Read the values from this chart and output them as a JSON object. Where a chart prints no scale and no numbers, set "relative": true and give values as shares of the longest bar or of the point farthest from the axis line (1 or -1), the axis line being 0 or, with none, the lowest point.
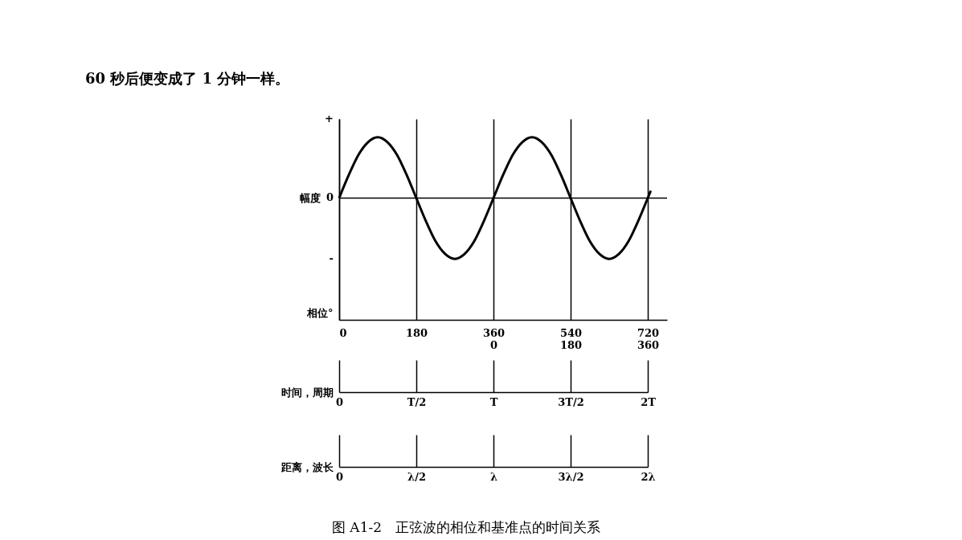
{
  "chart_data": [
    {
      "type": "line",
      "title": "图 A1-2　正弦波的相位和基准点的时间关系",
      "relative": true,
      "annotations": [
        "60 秒后便变成了 1 分钟一样。",
        "+",
        "0",
        "-"
      ],
      "ylabel": "幅度",
      "xlabel": "相位°",
      "x": [
        0,
        22.5,
        45,
        67.5,
        90,
        112.5,
        135,
        157.5,
        180,
        202.5,
        225,
        247.5,
        270,
        292.5,
        315,
        337.5,
        360,
        382.5,
        405,
        427.5,
        450,
        472.5,
        495,
        517.5,
        540,
        562.5,
        585,
        607.5,
        630,
        652.5,
        675,
        697.5,
        720,
        727
      ],
      "series": [
        {
          "color": "#000000",
          "values": [
            0,
            0.38,
            0.71,
            0.92,
            1,
            0.92,
            0.71,
            0.38,
            0,
            -0.38,
            -0.71,
            -0.92,
            -1,
            -0.92,
            -0.71,
            -0.38,
            0,
            0.38,
            0.71,
            0.92,
            1,
            0.92,
            0.71,
            0.38,
            0,
            -0.38,
            -0.71,
            -0.92,
            -1,
            -0.92,
            -0.71,
            -0.38,
            0,
            0.12
          ]
        }
      ],
      "xlim": [
        0,
        765
      ],
      "xticks": [
        0,
        180,
        360,
        540,
        720
      ],
      "x2lim": [
        -360,
        405
      ],
      "x2ticks": [
        0,
        180,
        360
      ],
      "grid": "x",
      "ref_lines": [
        {
          "axis": "y",
          "value": 0
        }
      ]
    },
    {
      "type": "other",
      "xlabel": "时间，周期",
      "categories": [
        "0",
        "T/2",
        "T",
        "3T/2",
        "2T"
      ]
    },
    {
      "type": "other",
      "xlabel": "距离，波长",
      "categories": [
        "0",
        "λ/2",
        "λ",
        "3λ/2",
        "2λ"
      ]
    }
  ]
}
